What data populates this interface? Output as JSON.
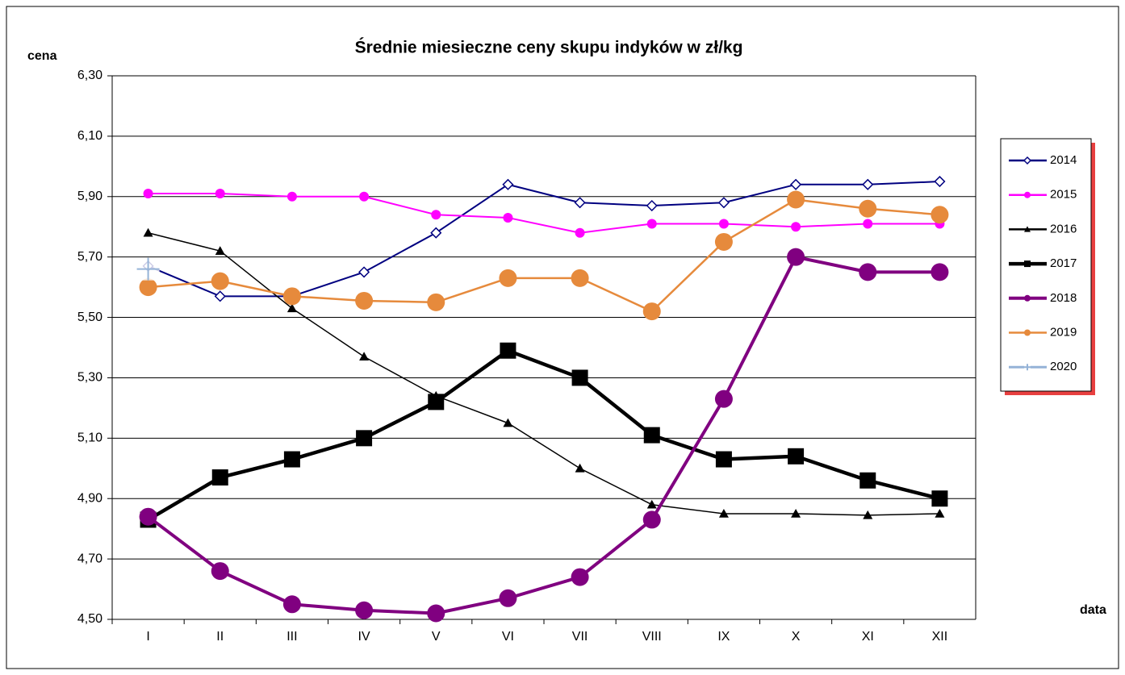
{
  "chart_data": {
    "type": "line",
    "title": "Średnie miesieczne ceny skupu indyków w zł/kg",
    "y_label": "cena",
    "x_label": "data",
    "categories": [
      "I",
      "II",
      "III",
      "IV",
      "V",
      "VI",
      "VII",
      "VIII",
      "IX",
      "X",
      "XI",
      "XII"
    ],
    "ylim": [
      4.5,
      6.3
    ],
    "yticks": [
      {
        "value": 4.5,
        "label": "4,50"
      },
      {
        "value": 4.7,
        "label": "4,70"
      },
      {
        "value": 4.9,
        "label": "4,90"
      },
      {
        "value": 5.1,
        "label": "5,10"
      },
      {
        "value": 5.3,
        "label": "5,30"
      },
      {
        "value": 5.5,
        "label": "5,50"
      },
      {
        "value": 5.7,
        "label": "5,70"
      },
      {
        "value": 5.9,
        "label": "5,90"
      },
      {
        "value": 6.1,
        "label": "6,10"
      },
      {
        "value": 6.3,
        "label": "6,30"
      }
    ],
    "grid": true,
    "legend": "right",
    "series": [
      {
        "name": "2014",
        "color": "#000080",
        "marker": "diamond",
        "values": [
          5.67,
          5.57,
          5.57,
          5.65,
          5.78,
          5.94,
          5.88,
          5.87,
          5.88,
          5.94,
          5.94,
          5.95
        ]
      },
      {
        "name": "2015",
        "color": "#ff00ff",
        "marker": "circle",
        "values": [
          5.91,
          5.91,
          5.9,
          5.9,
          5.84,
          5.83,
          5.78,
          5.81,
          5.81,
          5.8,
          5.81,
          5.81
        ]
      },
      {
        "name": "2016",
        "color": "#000000",
        "marker": "triangle",
        "values": [
          5.78,
          5.72,
          5.53,
          5.37,
          5.24,
          5.15,
          5.0,
          4.88,
          4.85,
          4.85,
          4.845,
          4.85
        ]
      },
      {
        "name": "2017",
        "color": "#000000",
        "marker": "square",
        "values": [
          4.83,
          4.97,
          5.03,
          5.1,
          5.22,
          5.39,
          5.3,
          5.11,
          5.03,
          5.04,
          4.96,
          4.9
        ]
      },
      {
        "name": "2018",
        "color": "#800080",
        "marker": "circle",
        "values": [
          4.84,
          4.66,
          4.55,
          4.53,
          4.52,
          4.57,
          4.64,
          4.83,
          5.23,
          5.7,
          5.65,
          5.65
        ]
      },
      {
        "name": "2019",
        "color": "#e68a3c",
        "marker": "circle",
        "values": [
          5.6,
          5.62,
          5.57,
          5.555,
          5.55,
          5.63,
          5.63,
          5.52,
          5.75,
          5.89,
          5.86,
          5.84
        ]
      },
      {
        "name": "2020",
        "color": "#95b3d7",
        "marker": "plus",
        "values": [
          5.66,
          null,
          null,
          null,
          null,
          null,
          null,
          null,
          null,
          null,
          null,
          null
        ]
      }
    ]
  }
}
